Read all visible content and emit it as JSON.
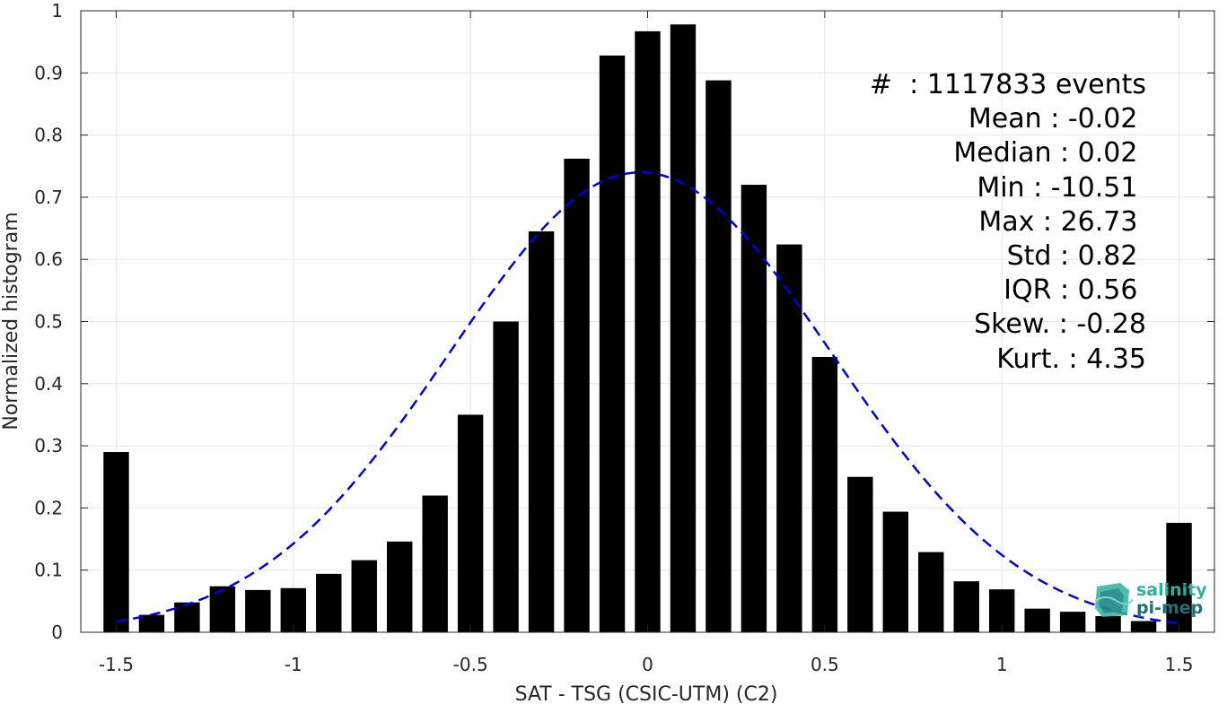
{
  "chart_data": {
    "type": "bar",
    "xlabel": "SAT - TSG (CSIC-UTM) (C2)",
    "ylabel": "Normalized histogram",
    "xlim": [
      -1.6,
      1.6
    ],
    "ylim": [
      0,
      1
    ],
    "xticks": [
      "-1.5",
      "-1",
      "-0.5",
      "0",
      "0.5",
      "1",
      "1.5"
    ],
    "xtick_values": [
      -1.5,
      -1,
      -0.5,
      0,
      0.5,
      1,
      1.5
    ],
    "yticks": [
      "0",
      "0.1",
      "0.2",
      "0.3",
      "0.4",
      "0.5",
      "0.6",
      "0.7",
      "0.8",
      "0.9",
      "1"
    ],
    "ytick_values": [
      0,
      0.1,
      0.2,
      0.3,
      0.4,
      0.5,
      0.6,
      0.7,
      0.8,
      0.9,
      1
    ],
    "grid": true,
    "x": [
      -1.5,
      -1.4,
      -1.3,
      -1.2,
      -1.1,
      -1.0,
      -0.9,
      -0.8,
      -0.7,
      -0.6,
      -0.5,
      -0.4,
      -0.3,
      -0.2,
      -0.1,
      0.0,
      0.1,
      0.2,
      0.3,
      0.4,
      0.5,
      0.6,
      0.7,
      0.8,
      0.9,
      1.0,
      1.1,
      1.2,
      1.3,
      1.4,
      1.5
    ],
    "values": [
      0.29,
      0.028,
      0.048,
      0.074,
      0.068,
      0.071,
      0.094,
      0.116,
      0.146,
      0.22,
      0.35,
      0.5,
      0.645,
      0.762,
      0.928,
      0.967,
      0.978,
      0.888,
      0.72,
      0.624,
      0.443,
      0.25,
      0.194,
      0.129,
      0.082,
      0.069,
      0.038,
      0.033,
      0.026,
      0.018,
      0.176
    ],
    "bar_color": "#000000",
    "fit_curve": {
      "style": "dashed",
      "color": "#0000e6",
      "mean": -0.02,
      "std": 0.54,
      "peak": 0.74,
      "x_range": [
        -1.5,
        1.5
      ]
    },
    "stats": [
      "#  : 1117833 events",
      "Mean : -0.02 ",
      "Median : 0.02 ",
      "Min : -10.51 ",
      "Max : 26.73 ",
      "Std : 0.82 ",
      "IQR : 0.56 ",
      "Skew. : -0.28",
      "Kurt. : 4.35"
    ]
  },
  "logo": {
    "line1": "salinity",
    "line2": "pi-mep"
  },
  "colors": {
    "axis": "#262626",
    "grid": "#e6e6e6",
    "logo_light": "#2bb3a0",
    "logo_dark": "#1f6e7a"
  }
}
